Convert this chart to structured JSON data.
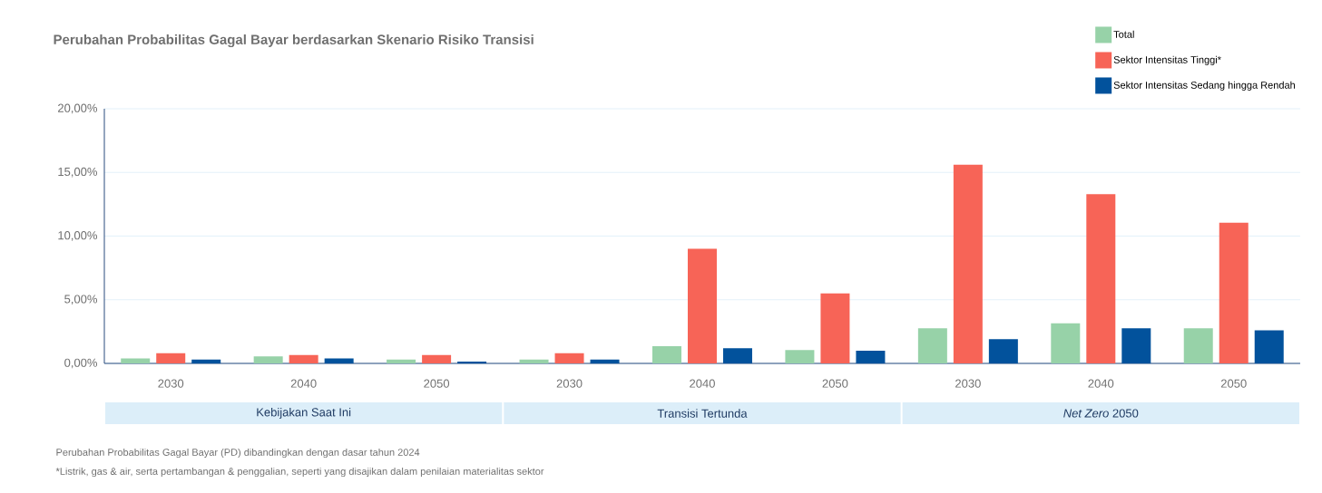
{
  "chart_data": {
    "type": "bar",
    "title": "Perubahan Probabilitas Gagal Bayar berdasarkan Skenario Risiko Transisi",
    "categories": [
      "2030",
      "2040",
      "2050",
      "2030",
      "2040",
      "2050",
      "2030",
      "2040",
      "2050"
    ],
    "series": [
      {
        "name": "Total",
        "color": "#97d2a8",
        "values": [
          0.4,
          0.55,
          0.3,
          0.3,
          1.35,
          1.05,
          2.75,
          3.15,
          2.75
        ]
      },
      {
        "name": "Sektor Intensitas Tinggi*",
        "color": "#f76457",
        "values": [
          0.8,
          0.65,
          0.65,
          0.8,
          9.0,
          5.5,
          15.6,
          13.3,
          11.05
        ]
      },
      {
        "name": "Sektor Intensitas Sedang hingga Rendah",
        "color": "#02529c",
        "values": [
          0.3,
          0.4,
          0.15,
          0.3,
          1.2,
          1.0,
          1.9,
          2.75,
          2.6
        ]
      }
    ],
    "ylim": [
      0,
      20
    ],
    "yticks": [
      {
        "value": 0,
        "label": "0,00%"
      },
      {
        "value": 5,
        "label": "5,00%"
      },
      {
        "value": 10,
        "label": "10,00%"
      },
      {
        "value": 15,
        "label": "15,00%"
      },
      {
        "value": 20,
        "label": "20,00%"
      }
    ],
    "grid": "y",
    "legend": "top right",
    "annotations": [
      "Kebijakan Saat Ini",
      "Transisi Tertunda",
      "*Net Zero* 2050",
      "Perubahan Probabilitas Gagal Bayar (PD) dibandingkan dengan dasar tahun 2024",
      "*Listrik, gas & air, serta pertambangan & penggalian, seperti yang disajikan dalam penilaian materialitas sektor"
    ]
  }
}
